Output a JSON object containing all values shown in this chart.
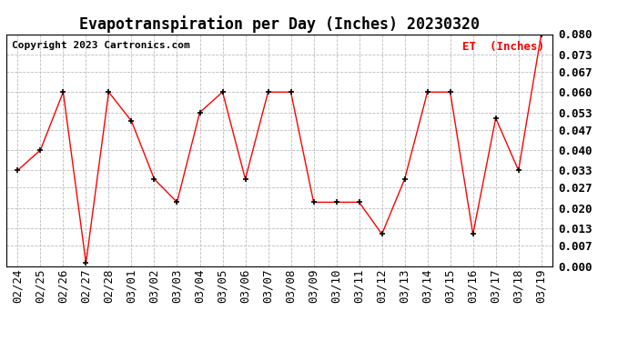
{
  "title": "Evapotranspiration per Day (Inches) 20230320",
  "copyright": "Copyright 2023 Cartronics.com",
  "legend_label": "ET  (Inches)",
  "dates": [
    "02/24",
    "02/25",
    "02/26",
    "02/27",
    "02/28",
    "03/01",
    "03/02",
    "03/03",
    "03/04",
    "03/05",
    "03/06",
    "03/07",
    "03/08",
    "03/09",
    "03/10",
    "03/11",
    "03/12",
    "03/13",
    "03/14",
    "03/15",
    "03/16",
    "03/17",
    "03/18",
    "03/19"
  ],
  "values": [
    0.033,
    0.04,
    0.06,
    0.001,
    0.06,
    0.05,
    0.03,
    0.022,
    0.053,
    0.06,
    0.03,
    0.06,
    0.06,
    0.022,
    0.022,
    0.022,
    0.011,
    0.03,
    0.06,
    0.06,
    0.011,
    0.051,
    0.033,
    0.08
  ],
  "line_color": "#ff0000",
  "marker": "+",
  "marker_color": "#000000",
  "ylim": [
    0.0,
    0.08
  ],
  "yticks": [
    0.0,
    0.007,
    0.013,
    0.02,
    0.027,
    0.033,
    0.04,
    0.047,
    0.053,
    0.06,
    0.067,
    0.073,
    0.08
  ],
  "background_color": "#ffffff",
  "grid_color": "#bbbbbb",
  "title_fontsize": 12,
  "tick_fontsize": 9,
  "copyright_fontsize": 8,
  "legend_fontsize": 9
}
